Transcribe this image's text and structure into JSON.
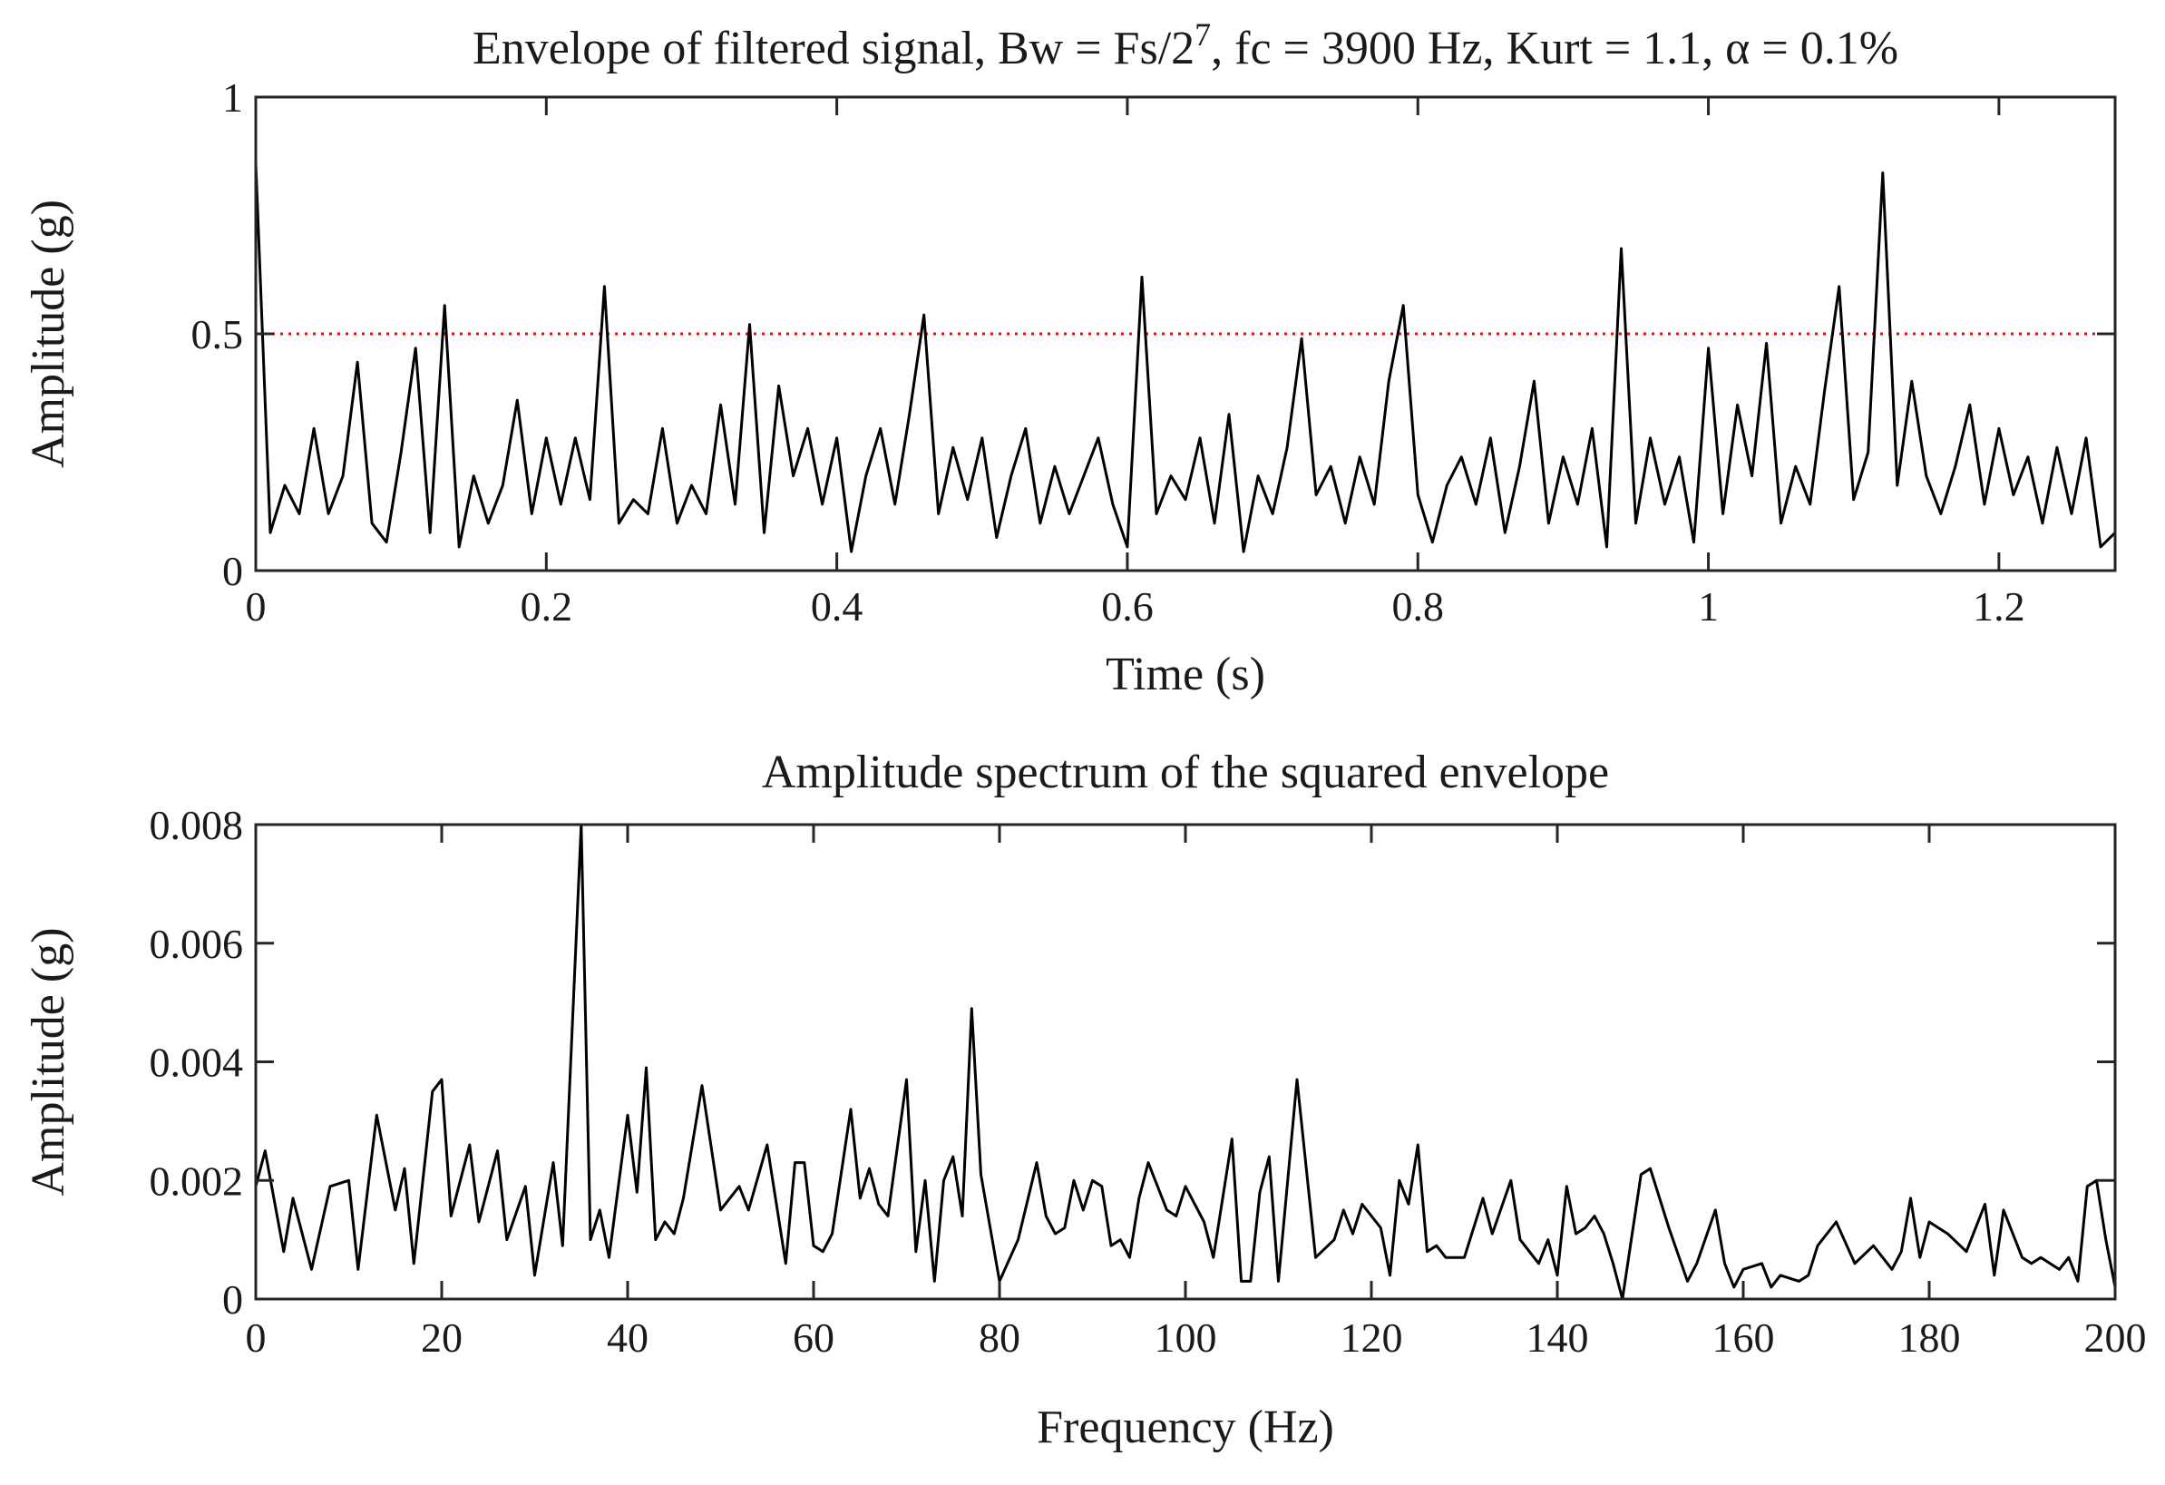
{
  "chart_data": [
    {
      "type": "line",
      "title": [
        "Envelope of filtered signal, Bw = Fs/2",
        "7",
        ", fc = 3900 Hz, Kurt = 1.1, α = 0.1%"
      ],
      "x_label": "Time (s)",
      "y_label": "Amplitude (g)",
      "xlim": [
        0,
        1.28
      ],
      "xticks": [
        0,
        0.2,
        0.4,
        0.6,
        0.8,
        1,
        1.2
      ],
      "ylim": [
        0,
        1
      ],
      "yticks": [
        0,
        0.5,
        1
      ],
      "threshold": 0.5,
      "threshold_color": "#ff0000",
      "color": "#000000",
      "grid": false,
      "x": [
        0,
        0.01,
        0.02,
        0.03,
        0.04,
        0.05,
        0.06,
        0.07,
        0.08,
        0.09,
        0.1,
        0.11,
        0.12,
        0.13,
        0.14,
        0.15,
        0.16,
        0.17,
        0.18,
        0.19,
        0.2,
        0.21,
        0.22,
        0.23,
        0.24,
        0.25,
        0.26,
        0.27,
        0.28,
        0.29,
        0.3,
        0.31,
        0.32,
        0.33,
        0.34,
        0.35,
        0.36,
        0.37,
        0.38,
        0.39,
        0.4,
        0.41,
        0.42,
        0.43,
        0.44,
        0.45,
        0.46,
        0.47,
        0.48,
        0.49,
        0.5,
        0.51,
        0.52,
        0.53,
        0.54,
        0.55,
        0.56,
        0.57,
        0.58,
        0.59,
        0.6,
        0.61,
        0.62,
        0.63,
        0.64,
        0.65,
        0.66,
        0.67,
        0.68,
        0.69,
        0.7,
        0.71,
        0.72,
        0.73,
        0.74,
        0.75,
        0.76,
        0.77,
        0.78,
        0.79,
        0.8,
        0.81,
        0.82,
        0.83,
        0.84,
        0.85,
        0.86,
        0.87,
        0.88,
        0.89,
        0.9,
        0.91,
        0.92,
        0.93,
        0.94,
        0.95,
        0.96,
        0.97,
        0.98,
        0.99,
        1,
        1.01,
        1.02,
        1.03,
        1.04,
        1.05,
        1.06,
        1.07,
        1.08,
        1.09,
        1.1,
        1.11,
        1.12,
        1.13,
        1.14,
        1.15,
        1.16,
        1.17,
        1.18,
        1.19,
        1.2,
        1.21,
        1.22,
        1.23,
        1.24,
        1.25,
        1.26,
        1.27,
        1.28
      ],
      "values": [
        0.86,
        0.08,
        0.18,
        0.12,
        0.3,
        0.12,
        0.2,
        0.44,
        0.1,
        0.06,
        0.25,
        0.47,
        0.08,
        0.56,
        0.05,
        0.2,
        0.1,
        0.18,
        0.36,
        0.12,
        0.28,
        0.14,
        0.28,
        0.15,
        0.6,
        0.1,
        0.15,
        0.12,
        0.3,
        0.1,
        0.18,
        0.12,
        0.35,
        0.14,
        0.52,
        0.08,
        0.39,
        0.2,
        0.3,
        0.14,
        0.28,
        0.04,
        0.2,
        0.3,
        0.14,
        0.33,
        0.54,
        0.12,
        0.26,
        0.15,
        0.28,
        0.07,
        0.2,
        0.3,
        0.1,
        0.22,
        0.12,
        0.2,
        0.28,
        0.14,
        0.05,
        0.62,
        0.12,
        0.2,
        0.15,
        0.28,
        0.1,
        0.33,
        0.04,
        0.2,
        0.12,
        0.26,
        0.49,
        0.16,
        0.22,
        0.1,
        0.24,
        0.14,
        0.4,
        0.56,
        0.16,
        0.06,
        0.18,
        0.24,
        0.14,
        0.28,
        0.08,
        0.22,
        0.4,
        0.1,
        0.24,
        0.14,
        0.3,
        0.05,
        0.68,
        0.1,
        0.28,
        0.14,
        0.24,
        0.06,
        0.47,
        0.12,
        0.35,
        0.2,
        0.48,
        0.1,
        0.22,
        0.14,
        0.38,
        0.6,
        0.15,
        0.25,
        0.84,
        0.18,
        0.4,
        0.2,
        0.12,
        0.22,
        0.35,
        0.14,
        0.3,
        0.16,
        0.24,
        0.1,
        0.26,
        0.12,
        0.28,
        0.05,
        0.08
      ]
    },
    {
      "type": "line",
      "title": [
        "Amplitude spectrum of the squared envelope"
      ],
      "x_label": "Frequency (Hz)",
      "y_label": "Amplitude (g)",
      "xlim": [
        0,
        200
      ],
      "xticks": [
        0,
        20,
        40,
        60,
        80,
        100,
        120,
        140,
        160,
        180,
        200
      ],
      "ylim": [
        0,
        0.008
      ],
      "yticks": [
        0,
        0.002,
        0.004,
        0.006,
        0.008
      ],
      "color": "#000000",
      "grid": false,
      "x": [
        0,
        1,
        3,
        4,
        6,
        8,
        10,
        11,
        13,
        15,
        16,
        17,
        19,
        20,
        21,
        23,
        24,
        26,
        27,
        29,
        30,
        32,
        33,
        35,
        36,
        37,
        38,
        40,
        41,
        42,
        43,
        44,
        45,
        46,
        48,
        50,
        52,
        53,
        55,
        57,
        58,
        59,
        60,
        61,
        62,
        64,
        65,
        66,
        67,
        68,
        70,
        71,
        72,
        73,
        74,
        75,
        76,
        77,
        78,
        80,
        82,
        84,
        85,
        86,
        87,
        88,
        89,
        90,
        91,
        92,
        93,
        94,
        95,
        96,
        98,
        99,
        100,
        102,
        103,
        105,
        106,
        107,
        108,
        109,
        110,
        112,
        114,
        116,
        117,
        118,
        119,
        121,
        122,
        123,
        124,
        125,
        126,
        127,
        128,
        130,
        132,
        133,
        135,
        136,
        138,
        139,
        140,
        141,
        142,
        143,
        144,
        145,
        146,
        147,
        149,
        150,
        152,
        154,
        155,
        157,
        158,
        159,
        160,
        162,
        163,
        164,
        166,
        167,
        168,
        170,
        172,
        174,
        176,
        177,
        178,
        179,
        180,
        182,
        184,
        186,
        187,
        188,
        190,
        191,
        192,
        194,
        195,
        196,
        197,
        198,
        199,
        200
      ],
      "values": [
        0.0019,
        0.0025,
        0.0008,
        0.0017,
        0.0005,
        0.0019,
        0.002,
        0.0005,
        0.0031,
        0.0015,
        0.0022,
        0.0006,
        0.0035,
        0.0037,
        0.0014,
        0.0026,
        0.0013,
        0.0025,
        0.001,
        0.0019,
        0.0004,
        0.0023,
        0.0009,
        0.008,
        0.001,
        0.0015,
        0.0007,
        0.0031,
        0.0018,
        0.0039,
        0.001,
        0.0013,
        0.0011,
        0.0017,
        0.0036,
        0.0015,
        0.0019,
        0.0015,
        0.0026,
        0.0006,
        0.0023,
        0.0023,
        0.0009,
        0.0008,
        0.0011,
        0.0032,
        0.0017,
        0.0022,
        0.0016,
        0.0014,
        0.0037,
        0.0008,
        0.002,
        0.0003,
        0.002,
        0.0024,
        0.0014,
        0.0049,
        0.0021,
        0.0003,
        0.001,
        0.0023,
        0.0014,
        0.0011,
        0.0012,
        0.002,
        0.0015,
        0.002,
        0.0019,
        0.0009,
        0.001,
        0.0007,
        0.0017,
        0.0023,
        0.0015,
        0.0014,
        0.0019,
        0.0013,
        0.0007,
        0.0027,
        0.0003,
        0.0003,
        0.0018,
        0.0024,
        0.0003,
        0.0037,
        0.0007,
        0.001,
        0.0015,
        0.0011,
        0.0016,
        0.0012,
        0.0004,
        0.002,
        0.0016,
        0.0026,
        0.0008,
        0.0009,
        0.0007,
        0.0007,
        0.0017,
        0.0011,
        0.002,
        0.001,
        0.0006,
        0.001,
        0.0004,
        0.0019,
        0.0011,
        0.0012,
        0.0014,
        0.0011,
        0.0006,
        0,
        0.0021,
        0.0022,
        0.0012,
        0.0003,
        0.0006,
        0.0015,
        0.0006,
        0.0002,
        0.0005,
        0.0006,
        0.0002,
        0.0004,
        0.0003,
        0.0004,
        0.0009,
        0.0013,
        0.0006,
        0.0009,
        0.0005,
        0.0008,
        0.0017,
        0.0007,
        0.0013,
        0.0011,
        0.0008,
        0.0016,
        0.0004,
        0.0015,
        0.0007,
        0.0006,
        0.0007,
        0.0005,
        0.0007,
        0.0003,
        0.0019,
        0.002,
        0.001,
        0.0002
      ]
    }
  ]
}
